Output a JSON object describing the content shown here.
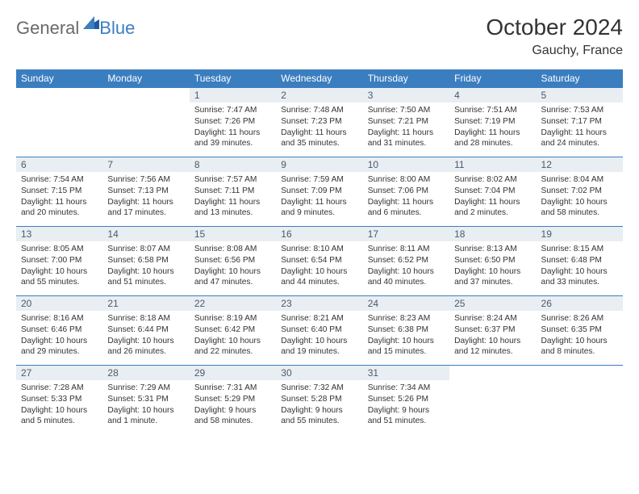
{
  "brand": {
    "part1": "General",
    "part2": "Blue"
  },
  "title": "October 2024",
  "location": "Gauchy, France",
  "colors": {
    "header_bg": "#3b7ec0",
    "header_text": "#ffffff",
    "daynum_bg": "#e9eef3",
    "daynum_text": "#4a5a6a",
    "border": "#3b7ec0",
    "logo_gray": "#6a6a6a",
    "logo_blue": "#3b7ec0"
  },
  "days_of_week": [
    "Sunday",
    "Monday",
    "Tuesday",
    "Wednesday",
    "Thursday",
    "Friday",
    "Saturday"
  ],
  "weeks": [
    [
      null,
      null,
      {
        "n": "1",
        "sr": "Sunrise: 7:47 AM",
        "ss": "Sunset: 7:26 PM",
        "dl": "Daylight: 11 hours and 39 minutes."
      },
      {
        "n": "2",
        "sr": "Sunrise: 7:48 AM",
        "ss": "Sunset: 7:23 PM",
        "dl": "Daylight: 11 hours and 35 minutes."
      },
      {
        "n": "3",
        "sr": "Sunrise: 7:50 AM",
        "ss": "Sunset: 7:21 PM",
        "dl": "Daylight: 11 hours and 31 minutes."
      },
      {
        "n": "4",
        "sr": "Sunrise: 7:51 AM",
        "ss": "Sunset: 7:19 PM",
        "dl": "Daylight: 11 hours and 28 minutes."
      },
      {
        "n": "5",
        "sr": "Sunrise: 7:53 AM",
        "ss": "Sunset: 7:17 PM",
        "dl": "Daylight: 11 hours and 24 minutes."
      }
    ],
    [
      {
        "n": "6",
        "sr": "Sunrise: 7:54 AM",
        "ss": "Sunset: 7:15 PM",
        "dl": "Daylight: 11 hours and 20 minutes."
      },
      {
        "n": "7",
        "sr": "Sunrise: 7:56 AM",
        "ss": "Sunset: 7:13 PM",
        "dl": "Daylight: 11 hours and 17 minutes."
      },
      {
        "n": "8",
        "sr": "Sunrise: 7:57 AM",
        "ss": "Sunset: 7:11 PM",
        "dl": "Daylight: 11 hours and 13 minutes."
      },
      {
        "n": "9",
        "sr": "Sunrise: 7:59 AM",
        "ss": "Sunset: 7:09 PM",
        "dl": "Daylight: 11 hours and 9 minutes."
      },
      {
        "n": "10",
        "sr": "Sunrise: 8:00 AM",
        "ss": "Sunset: 7:06 PM",
        "dl": "Daylight: 11 hours and 6 minutes."
      },
      {
        "n": "11",
        "sr": "Sunrise: 8:02 AM",
        "ss": "Sunset: 7:04 PM",
        "dl": "Daylight: 11 hours and 2 minutes."
      },
      {
        "n": "12",
        "sr": "Sunrise: 8:04 AM",
        "ss": "Sunset: 7:02 PM",
        "dl": "Daylight: 10 hours and 58 minutes."
      }
    ],
    [
      {
        "n": "13",
        "sr": "Sunrise: 8:05 AM",
        "ss": "Sunset: 7:00 PM",
        "dl": "Daylight: 10 hours and 55 minutes."
      },
      {
        "n": "14",
        "sr": "Sunrise: 8:07 AM",
        "ss": "Sunset: 6:58 PM",
        "dl": "Daylight: 10 hours and 51 minutes."
      },
      {
        "n": "15",
        "sr": "Sunrise: 8:08 AM",
        "ss": "Sunset: 6:56 PM",
        "dl": "Daylight: 10 hours and 47 minutes."
      },
      {
        "n": "16",
        "sr": "Sunrise: 8:10 AM",
        "ss": "Sunset: 6:54 PM",
        "dl": "Daylight: 10 hours and 44 minutes."
      },
      {
        "n": "17",
        "sr": "Sunrise: 8:11 AM",
        "ss": "Sunset: 6:52 PM",
        "dl": "Daylight: 10 hours and 40 minutes."
      },
      {
        "n": "18",
        "sr": "Sunrise: 8:13 AM",
        "ss": "Sunset: 6:50 PM",
        "dl": "Daylight: 10 hours and 37 minutes."
      },
      {
        "n": "19",
        "sr": "Sunrise: 8:15 AM",
        "ss": "Sunset: 6:48 PM",
        "dl": "Daylight: 10 hours and 33 minutes."
      }
    ],
    [
      {
        "n": "20",
        "sr": "Sunrise: 8:16 AM",
        "ss": "Sunset: 6:46 PM",
        "dl": "Daylight: 10 hours and 29 minutes."
      },
      {
        "n": "21",
        "sr": "Sunrise: 8:18 AM",
        "ss": "Sunset: 6:44 PM",
        "dl": "Daylight: 10 hours and 26 minutes."
      },
      {
        "n": "22",
        "sr": "Sunrise: 8:19 AM",
        "ss": "Sunset: 6:42 PM",
        "dl": "Daylight: 10 hours and 22 minutes."
      },
      {
        "n": "23",
        "sr": "Sunrise: 8:21 AM",
        "ss": "Sunset: 6:40 PM",
        "dl": "Daylight: 10 hours and 19 minutes."
      },
      {
        "n": "24",
        "sr": "Sunrise: 8:23 AM",
        "ss": "Sunset: 6:38 PM",
        "dl": "Daylight: 10 hours and 15 minutes."
      },
      {
        "n": "25",
        "sr": "Sunrise: 8:24 AM",
        "ss": "Sunset: 6:37 PM",
        "dl": "Daylight: 10 hours and 12 minutes."
      },
      {
        "n": "26",
        "sr": "Sunrise: 8:26 AM",
        "ss": "Sunset: 6:35 PM",
        "dl": "Daylight: 10 hours and 8 minutes."
      }
    ],
    [
      {
        "n": "27",
        "sr": "Sunrise: 7:28 AM",
        "ss": "Sunset: 5:33 PM",
        "dl": "Daylight: 10 hours and 5 minutes."
      },
      {
        "n": "28",
        "sr": "Sunrise: 7:29 AM",
        "ss": "Sunset: 5:31 PM",
        "dl": "Daylight: 10 hours and 1 minute."
      },
      {
        "n": "29",
        "sr": "Sunrise: 7:31 AM",
        "ss": "Sunset: 5:29 PM",
        "dl": "Daylight: 9 hours and 58 minutes."
      },
      {
        "n": "30",
        "sr": "Sunrise: 7:32 AM",
        "ss": "Sunset: 5:28 PM",
        "dl": "Daylight: 9 hours and 55 minutes."
      },
      {
        "n": "31",
        "sr": "Sunrise: 7:34 AM",
        "ss": "Sunset: 5:26 PM",
        "dl": "Daylight: 9 hours and 51 minutes."
      },
      null,
      null
    ]
  ]
}
